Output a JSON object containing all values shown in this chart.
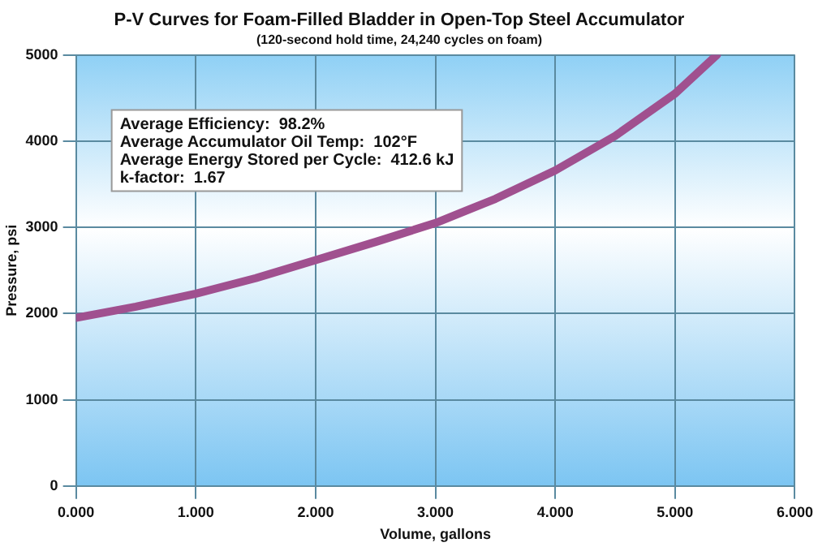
{
  "chart_data": {
    "type": "line",
    "title": "P-V Curves for Foam-Filled Bladder in Open-Top Steel Accumulator",
    "subtitle": "(120-second hold time, 24,240 cycles on foam)",
    "xlabel": "Volume, gallons",
    "ylabel": "Pressure, psi",
    "x": [
      0,
      0.5,
      1,
      1.5,
      2,
      2.5,
      3,
      3.5,
      4,
      4.5,
      5,
      5.35
    ],
    "series": [
      {
        "color": "#a0508f",
        "values": [
          1950,
          2080,
          2230,
          2410,
          2620,
          2830,
          3050,
          3330,
          3660,
          4060,
          4550,
          5000
        ]
      }
    ],
    "xlim": [
      0,
      6
    ],
    "xticks": [
      {
        "value": 0,
        "label": "0.000"
      },
      {
        "value": 1,
        "label": "1.000"
      },
      {
        "value": 2,
        "label": "2.000"
      },
      {
        "value": 3,
        "label": "3.000"
      },
      {
        "value": 4,
        "label": "4.000"
      },
      {
        "value": 5,
        "label": "5.000"
      },
      {
        "value": 6,
        "label": "6.000"
      }
    ],
    "ylim": [
      0,
      5000
    ],
    "yticks": [
      0,
      1000,
      2000,
      3000,
      4000,
      5000
    ],
    "annotations": [
      "Average Efficiency:  98.2%",
      "Average Accumulator Oil Temp:  102°F",
      "Average Energy Stored per Cycle:  412.6 kJ",
      "k-factor:  1.67"
    ],
    "grid": true,
    "legend": false,
    "marker": "none",
    "line_style": "solid"
  }
}
